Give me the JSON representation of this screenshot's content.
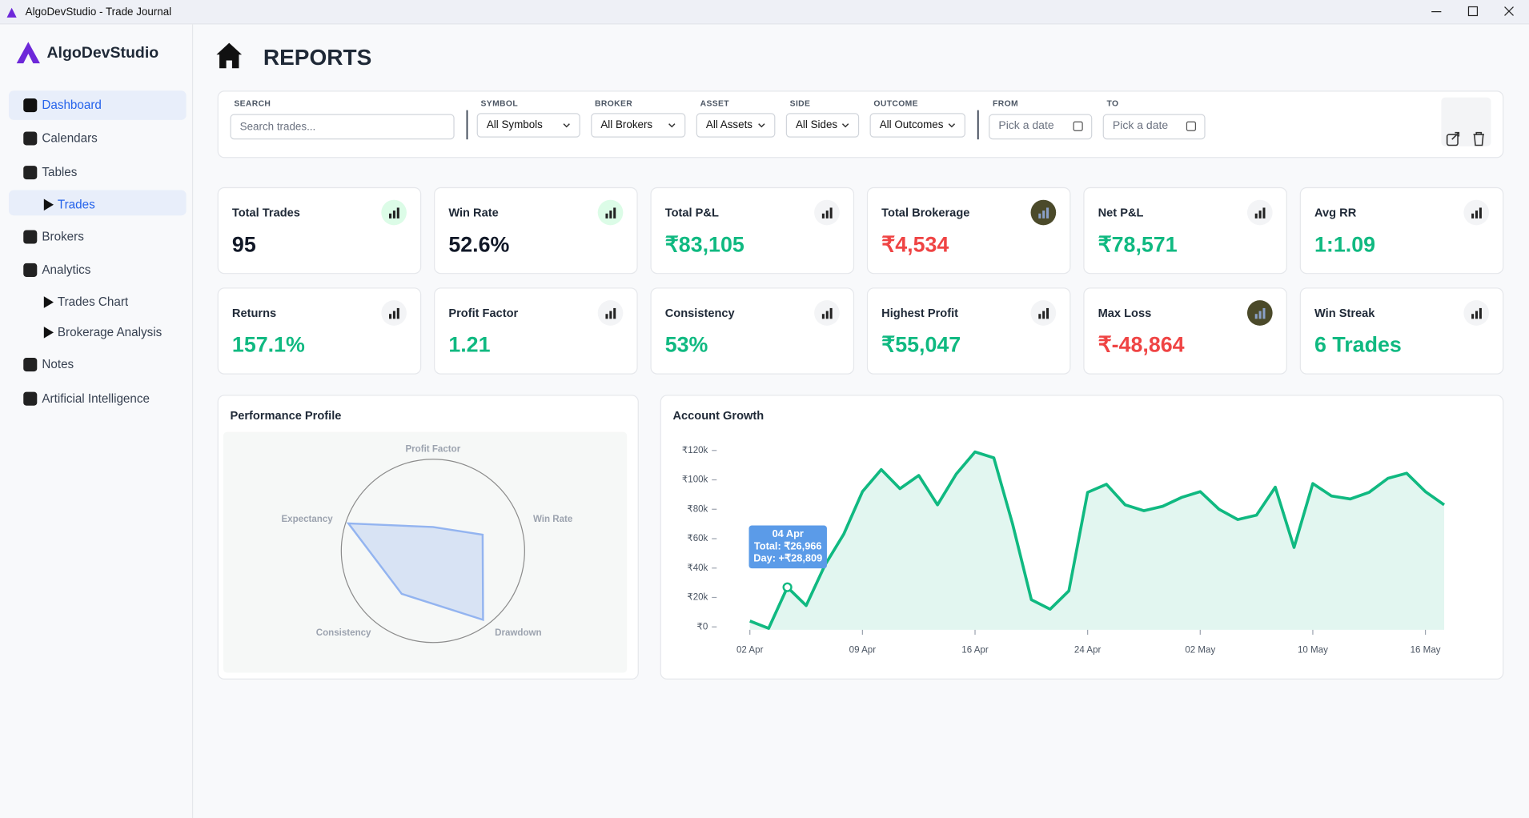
{
  "window": {
    "title": "AlgoDevStudio - Trade Journal"
  },
  "sidebar": {
    "brand": "AlgoDevStudio",
    "nav": [
      {
        "label": "Dashboard",
        "level": 1,
        "active": true
      },
      {
        "label": "Calendars",
        "level": 1,
        "active": false
      },
      {
        "label": "Tables",
        "level": 1,
        "active": false
      },
      {
        "label": "Trades",
        "level": 2,
        "active": true
      },
      {
        "label": "Brokers",
        "level": 1,
        "active": false
      },
      {
        "label": "Analytics",
        "level": 1,
        "active": false
      },
      {
        "label": "Trades Chart",
        "level": 2,
        "active": false
      },
      {
        "label": "Brokerage Analysis",
        "level": 2,
        "active": false
      },
      {
        "label": "Notes",
        "level": 1,
        "active": false
      },
      {
        "label": "Artificial Intelligence",
        "level": 1,
        "active": false
      }
    ]
  },
  "header": {
    "title": "REPORTS"
  },
  "filters": {
    "search": {
      "label": "SEARCH",
      "placeholder": "Search trades..."
    },
    "selects": [
      {
        "label": "SYMBOL",
        "value": "All Symbols"
      },
      {
        "label": "BROKER",
        "value": "All Brokers"
      },
      {
        "label": "ASSET",
        "value": "All Assets"
      },
      {
        "label": "SIDE",
        "value": "All Sides"
      },
      {
        "label": "OUTCOME",
        "value": "All Outcomes"
      }
    ],
    "dates": [
      {
        "label": "FROM",
        "placeholder": "Pick a date"
      },
      {
        "label": "TO",
        "placeholder": "Pick a date"
      }
    ]
  },
  "cards": [
    {
      "title": "Total Trades",
      "value": "95",
      "color": "#111827"
    },
    {
      "title": "Win Rate",
      "value": "52.6%",
      "color": "#111827"
    },
    {
      "title": "Total P&L",
      "value": "₹83,105",
      "color": "#10b981"
    },
    {
      "title": "Total Brokerage",
      "value": "₹4,534",
      "color": "#ef4444"
    },
    {
      "title": "Net P&L",
      "value": "₹78,571",
      "color": "#10b981"
    },
    {
      "title": "Avg RR",
      "value": "1:1.09",
      "color": "#10b981"
    },
    {
      "title": "Returns",
      "value": "157.1%",
      "color": "#10b981"
    },
    {
      "title": "Profit Factor",
      "value": "1.21",
      "color": "#10b981"
    },
    {
      "title": "Consistency",
      "value": "53%",
      "color": "#10b981"
    },
    {
      "title": "Highest Profit",
      "value": "₹55,047",
      "color": "#10b981"
    },
    {
      "title": "Max Loss",
      "value": "₹-48,864",
      "color": "#ef4444"
    },
    {
      "title": "Win Streak",
      "value": "6 Trades",
      "color": "#10b981"
    }
  ],
  "chart_data": [
    {
      "type": "radar",
      "title": "Performance Profile",
      "axes": [
        "Profit Factor",
        "Win Rate",
        "Drawdown",
        "Consistency",
        "Expectancy"
      ],
      "values": [
        26,
        57,
        93,
        58,
        97
      ],
      "rlim": [
        0,
        100
      ],
      "color": "#93b4f0"
    },
    {
      "type": "area",
      "title": "Account Growth",
      "categories": [
        "02 Apr",
        null,
        null,
        null,
        null,
        null,
        "09 Apr",
        null,
        null,
        null,
        null,
        null,
        "16 Apr",
        null,
        null,
        null,
        null,
        null,
        "24 Apr",
        null,
        null,
        null,
        null,
        null,
        "02 May",
        null,
        null,
        null,
        null,
        null,
        "10 May",
        null,
        null,
        null,
        null,
        null,
        "16 May",
        null
      ],
      "values": [
        4000,
        -1000,
        26966,
        14500,
        42000,
        63000,
        92000,
        107000,
        94000,
        103000,
        83000,
        104000,
        119000,
        115000,
        70000,
        18500,
        12000,
        24500,
        91500,
        97000,
        83000,
        79000,
        82000,
        88000,
        92000,
        80000,
        73000,
        76000,
        95000,
        54000,
        97500,
        89000,
        87000,
        91500,
        101000,
        104500,
        92000,
        83000
      ],
      "ylim": [
        -2000,
        120000
      ],
      "yticks": [
        {
          "value": 0,
          "label": "₹0"
        },
        {
          "value": 20000,
          "label": "₹20k"
        },
        {
          "value": 40000,
          "label": "₹40k"
        },
        {
          "value": 60000,
          "label": "₹60k"
        },
        {
          "value": 80000,
          "label": "₹80k"
        },
        {
          "value": 100000,
          "label": "₹100k"
        },
        {
          "value": 120000,
          "label": "₹120k"
        }
      ],
      "color": "#10b981",
      "tooltip": {
        "title": "04 Apr",
        "lines": [
          "Total: ₹26,966",
          "Day: +₹28,809"
        ]
      }
    }
  ]
}
